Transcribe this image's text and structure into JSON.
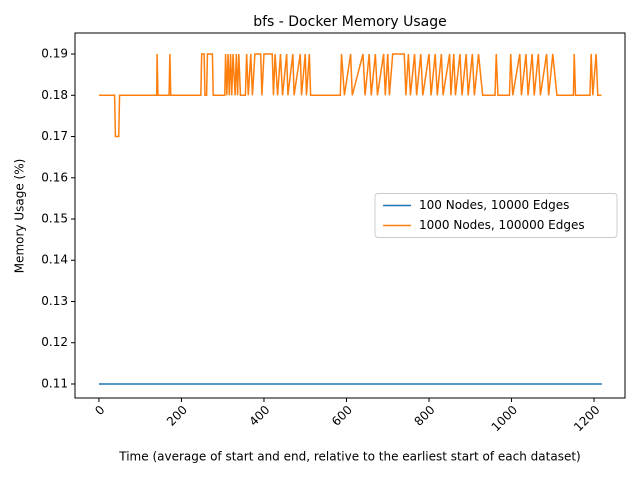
{
  "chart_data": {
    "type": "line",
    "title": "bfs - Docker Memory Usage",
    "x_label": "Time (average of start and end, relative to the earliest start of each dataset)",
    "y_label": "Memory Usage (%)",
    "xlim": [
      -58,
      1275
    ],
    "xticks": [
      0,
      200,
      400,
      600,
      800,
      1000,
      1200
    ],
    "ylim": [
      0.1066,
      0.1951
    ],
    "yticks": [
      0.11,
      0.12,
      0.13,
      0.14,
      0.15,
      0.16,
      0.17,
      0.18,
      0.19
    ],
    "legend": "center right",
    "series": [
      {
        "name": "100 Nodes, 10000 Edges",
        "color": "#1f77b4",
        "x": [
          0,
          1219
        ],
        "values": [
          0.11,
          0.11
        ]
      },
      {
        "name": "1000 Nodes, 100000 Edges",
        "color": "#ff7f0e",
        "x": [
          0,
          38,
          40,
          48,
          50,
          140,
          141,
          143,
          170,
          172,
          174,
          247,
          249,
          255,
          257,
          261,
          263,
          275,
          277,
          305,
          307,
          310,
          313,
          316,
          319,
          322,
          325,
          330,
          333,
          336,
          339,
          343,
          355,
          358,
          362,
          368,
          372,
          378,
          392,
          395,
          400,
          420,
          423,
          427,
          433,
          440,
          445,
          455,
          458,
          470,
          473,
          488,
          491,
          500,
          503,
          510,
          513,
          585,
          588,
          595,
          610,
          614,
          640,
          645,
          655,
          660,
          670,
          675,
          690,
          694,
          700,
          704,
          712,
          740,
          744,
          750,
          755,
          765,
          770,
          780,
          785,
          800,
          805,
          815,
          820,
          830,
          834,
          850,
          853,
          860,
          864,
          875,
          880,
          890,
          895,
          905,
          910,
          920,
          930,
          960,
          963,
          967,
          995,
          998,
          1003,
          1020,
          1024,
          1035,
          1040,
          1050,
          1055,
          1065,
          1070,
          1085,
          1090,
          1100,
          1110,
          1150,
          1152,
          1155,
          1190,
          1193,
          1197,
          1205,
          1209,
          1218
        ],
        "values": [
          0.18,
          0.18,
          0.17,
          0.17,
          0.18,
          0.18,
          0.19,
          0.18,
          0.18,
          0.19,
          0.18,
          0.18,
          0.19,
          0.19,
          0.18,
          0.18,
          0.19,
          0.19,
          0.18,
          0.18,
          0.19,
          0.18,
          0.19,
          0.18,
          0.19,
          0.18,
          0.19,
          0.18,
          0.19,
          0.18,
          0.19,
          0.18,
          0.18,
          0.19,
          0.18,
          0.19,
          0.18,
          0.19,
          0.19,
          0.18,
          0.19,
          0.19,
          0.18,
          0.19,
          0.18,
          0.19,
          0.18,
          0.19,
          0.18,
          0.19,
          0.18,
          0.19,
          0.18,
          0.19,
          0.18,
          0.19,
          0.18,
          0.18,
          0.19,
          0.18,
          0.19,
          0.18,
          0.19,
          0.18,
          0.19,
          0.18,
          0.19,
          0.18,
          0.19,
          0.18,
          0.19,
          0.18,
          0.19,
          0.19,
          0.18,
          0.19,
          0.18,
          0.19,
          0.18,
          0.19,
          0.18,
          0.19,
          0.18,
          0.19,
          0.18,
          0.19,
          0.18,
          0.19,
          0.18,
          0.19,
          0.18,
          0.19,
          0.18,
          0.19,
          0.18,
          0.19,
          0.18,
          0.19,
          0.18,
          0.18,
          0.19,
          0.18,
          0.18,
          0.19,
          0.18,
          0.19,
          0.18,
          0.19,
          0.18,
          0.19,
          0.18,
          0.19,
          0.18,
          0.19,
          0.18,
          0.19,
          0.18,
          0.18,
          0.19,
          0.18,
          0.18,
          0.19,
          0.18,
          0.19,
          0.18,
          0.18
        ]
      }
    ]
  }
}
